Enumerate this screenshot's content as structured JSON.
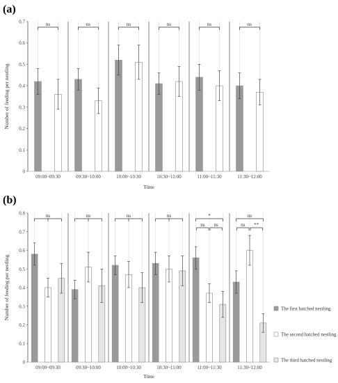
{
  "chart_data": [
    {
      "panel": "(a)",
      "type": "bar",
      "categories": [
        "09:00~09:30",
        "09:30~10:00",
        "10:00~10:30",
        "10:30~11:00",
        "11:00~11:30",
        "11:30~12:00"
      ],
      "series": [
        {
          "name": "The first hatched nestling",
          "values": [
            0.42,
            0.43,
            0.52,
            0.41,
            0.44,
            0.4
          ],
          "errors": [
            0.06,
            0.05,
            0.07,
            0.05,
            0.06,
            0.06
          ],
          "color": "#999999"
        },
        {
          "name": "The second hatched nestling",
          "values": [
            0.36,
            0.33,
            0.51,
            0.42,
            0.4,
            0.37
          ],
          "errors": [
            0.07,
            0.06,
            0.08,
            0.07,
            0.07,
            0.06
          ],
          "color": "#ffffff"
        }
      ],
      "significance": [
        [
          "ns"
        ],
        [
          "ns"
        ],
        [
          "ns"
        ],
        [
          "ns"
        ],
        [
          "ns"
        ],
        [
          "ns"
        ]
      ],
      "xlabel": "Time",
      "ylabel": "Number of feeding per nestling",
      "ylim": [
        0,
        0.7
      ],
      "yticks": [
        "0",
        "0.1",
        "0.2",
        "0.3",
        "0.4",
        "0.5",
        "0.6",
        "0.7"
      ]
    },
    {
      "panel": "(b)",
      "type": "bar",
      "categories": [
        "09:00~09:30",
        "09:30~10:00",
        "10:00~10:30",
        "10:30~11:00",
        "11:00~11:30",
        "11:30~12:00"
      ],
      "series": [
        {
          "name": "The first hatched nestling",
          "values": [
            0.58,
            0.39,
            0.52,
            0.53,
            0.56,
            0.43
          ],
          "errors": [
            0.06,
            0.05,
            0.05,
            0.06,
            0.06,
            0.06
          ],
          "color": "#999999"
        },
        {
          "name": "The second hatched nestling",
          "values": [
            0.4,
            0.51,
            0.47,
            0.5,
            0.37,
            0.6
          ],
          "errors": [
            0.05,
            0.08,
            0.07,
            0.07,
            0.05,
            0.08
          ],
          "color": "#ffffff"
        },
        {
          "name": "The third hatched nestling",
          "values": [
            0.45,
            0.41,
            0.4,
            0.49,
            0.31,
            0.21
          ],
          "errors": [
            0.08,
            0.09,
            0.08,
            0.08,
            0.07,
            0.05
          ],
          "color": "#e6e6e6"
        }
      ],
      "significance": [
        [
          "ns"
        ],
        [
          "ns"
        ],
        [
          "ns"
        ],
        [
          "ns"
        ],
        [
          "*",
          "ns",
          "ns"
        ],
        [
          "ns",
          "ns",
          "**"
        ]
      ],
      "xlabel": "Time",
      "ylabel": "Number of feeding per nestling",
      "ylim": [
        0,
        0.8
      ],
      "yticks": [
        "0",
        "0.1",
        "0.2",
        "0.3",
        "0.4",
        "0.5",
        "0.6",
        "0.7",
        "0.8"
      ]
    }
  ],
  "legend": [
    "The first hatched nestling",
    "The second hatched nestling",
    "The third hatched nestling"
  ]
}
